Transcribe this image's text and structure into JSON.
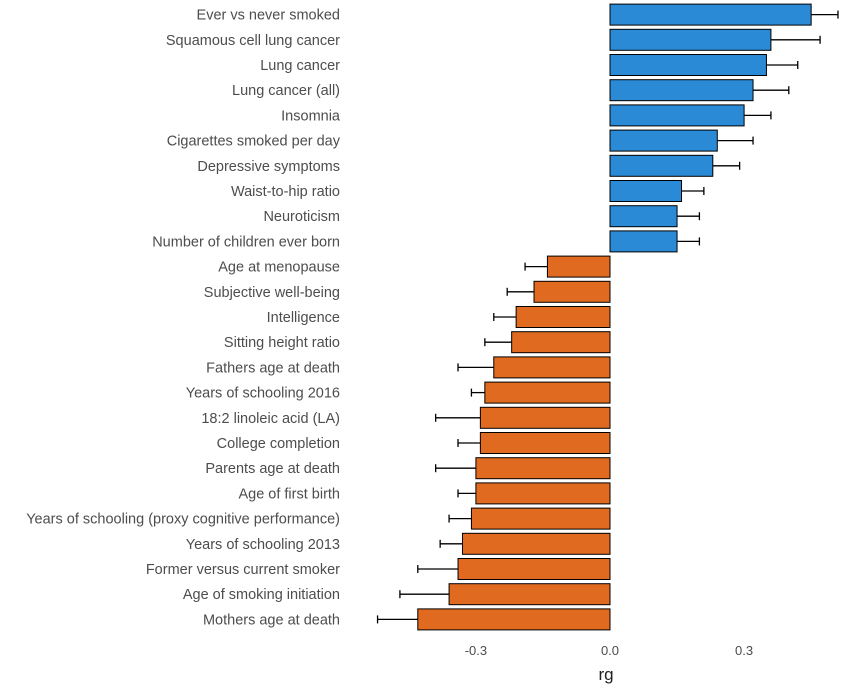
{
  "chart_data": {
    "type": "bar",
    "orientation": "horizontal",
    "title": "",
    "xlabel": "rg",
    "ylabel": "",
    "xlim": [
      -0.52,
      0.56
    ],
    "xticks": [
      -0.3,
      0.0,
      0.3
    ],
    "xtick_labels": [
      "-0.3",
      "0.0",
      "0.3"
    ],
    "grid": false,
    "colors": {
      "positive": "#2b8ad6",
      "negative": "#e06a1f",
      "error_bar": "#000000",
      "bar_edge": "#000000"
    },
    "categories": [
      "Ever vs never smoked",
      "Squamous cell lung cancer",
      "Lung cancer",
      "Lung cancer (all)",
      "Insomnia",
      "Cigarettes smoked per day",
      "Depressive symptoms",
      "Waist-to-hip ratio",
      "Neuroticism",
      "Number of children ever born",
      "Age at menopause",
      "Subjective well-being",
      "Intelligence",
      "Sitting height ratio",
      "Fathers age at death",
      "Years of schooling 2016",
      "18:2 linoleic acid (LA)",
      "College completion",
      "Parents age at death",
      "Age of first birth",
      "Years of schooling (proxy cognitive performance)",
      "Years of schooling 2013",
      "Former versus current smoker",
      "Age of smoking initiation",
      "Mothers age at death"
    ],
    "values": [
      0.45,
      0.36,
      0.35,
      0.32,
      0.3,
      0.24,
      0.23,
      0.16,
      0.15,
      0.15,
      -0.14,
      -0.17,
      -0.21,
      -0.22,
      -0.26,
      -0.28,
      -0.29,
      -0.29,
      -0.3,
      -0.3,
      -0.31,
      -0.33,
      -0.34,
      -0.36,
      -0.43
    ],
    "errors": [
      0.06,
      0.11,
      0.07,
      0.08,
      0.06,
      0.08,
      0.06,
      0.05,
      0.05,
      0.05,
      0.05,
      0.06,
      0.05,
      0.06,
      0.08,
      0.03,
      0.1,
      0.05,
      0.09,
      0.04,
      0.05,
      0.05,
      0.09,
      0.11,
      0.09
    ]
  }
}
